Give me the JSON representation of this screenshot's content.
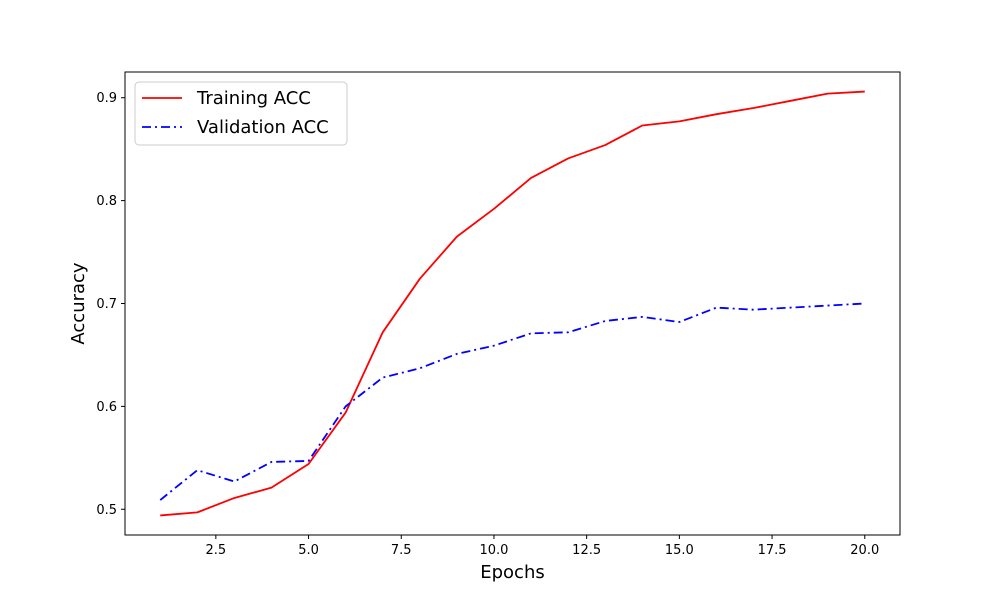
{
  "chart_data": {
    "type": "line",
    "title": "",
    "xlabel": "Epochs",
    "ylabel": "Accuracy",
    "xlim": [
      0.05,
      20.95
    ],
    "ylim": [
      0.475,
      0.925
    ],
    "x_ticks": [
      2.5,
      5.0,
      7.5,
      10.0,
      12.5,
      15.0,
      17.5,
      20.0
    ],
    "x_tick_labels": [
      "2.5",
      "5.0",
      "7.5",
      "10.0",
      "12.5",
      "15.0",
      "17.5",
      "20.0"
    ],
    "y_ticks": [
      0.5,
      0.6,
      0.7,
      0.8,
      0.9
    ],
    "y_tick_labels": [
      "0.5",
      "0.6",
      "0.7",
      "0.8",
      "0.9"
    ],
    "grid": false,
    "legend_position": "top-left",
    "x": [
      1,
      2,
      3,
      4,
      5,
      6,
      7,
      8,
      9,
      10,
      11,
      12,
      13,
      14,
      15,
      16,
      17,
      18,
      19,
      20
    ],
    "series": [
      {
        "name": "Training ACC",
        "color": "#ff0000",
        "style": "solid",
        "values": [
          0.494,
          0.497,
          0.511,
          0.521,
          0.544,
          0.594,
          0.672,
          0.724,
          0.765,
          0.792,
          0.822,
          0.841,
          0.854,
          0.873,
          0.877,
          0.884,
          0.89,
          0.897,
          0.904,
          0.906
        ]
      },
      {
        "name": "Validation ACC",
        "color": "#0000ff",
        "style": "dashdot",
        "values": [
          0.509,
          0.538,
          0.527,
          0.546,
          0.547,
          0.6,
          0.628,
          0.637,
          0.651,
          0.659,
          0.671,
          0.672,
          0.683,
          0.687,
          0.682,
          0.696,
          0.694,
          0.696,
          0.698,
          0.7
        ]
      }
    ]
  }
}
